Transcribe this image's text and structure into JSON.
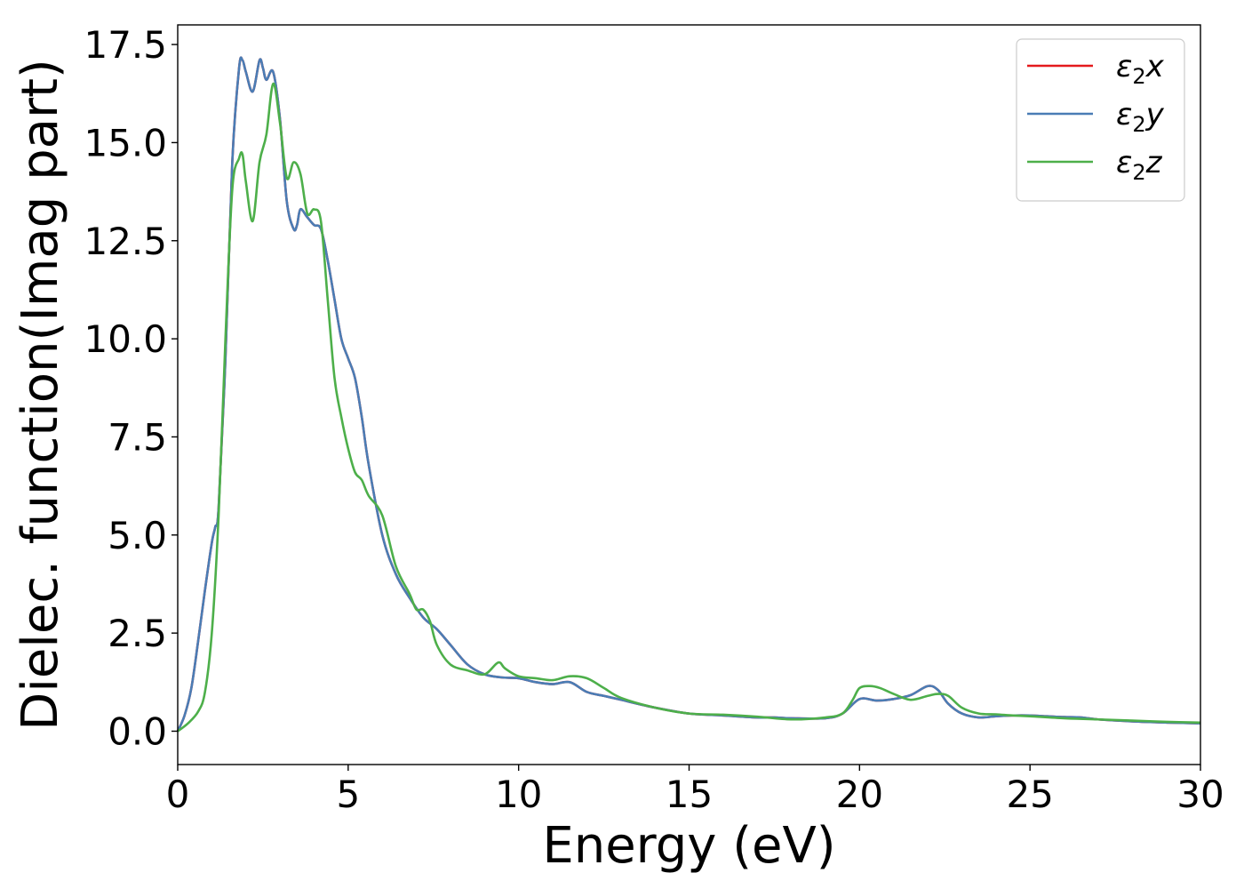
{
  "chart_data": {
    "type": "line",
    "title": "",
    "xlabel": "Energy (eV)",
    "ylabel": "Dielec. function(Imag part)",
    "xlim": [
      0,
      30
    ],
    "ylim": [
      -0.85,
      18.0
    ],
    "xticks": [
      0,
      5,
      10,
      15,
      20,
      25,
      30
    ],
    "xtick_labels": [
      "0",
      "5",
      "10",
      "15",
      "20",
      "25",
      "30"
    ],
    "yticks": [
      0.0,
      2.5,
      5.0,
      7.5,
      10.0,
      12.5,
      15.0,
      17.5
    ],
    "ytick_labels": [
      "0.0",
      "2.5",
      "5.0",
      "7.5",
      "10.0",
      "12.5",
      "15.0",
      "17.5"
    ],
    "grid": false,
    "legend_position": "top-right",
    "series": [
      {
        "name": "ε2x",
        "legend_base": "ε",
        "legend_sub": "2",
        "legend_var": "x",
        "color": "#e41a1c",
        "x": [
          0,
          0.2,
          0.4,
          0.6,
          0.8,
          1.0,
          1.1,
          1.2,
          1.4,
          1.6,
          1.8,
          1.9,
          2.0,
          2.2,
          2.4,
          2.5,
          2.6,
          2.8,
          3.0,
          3.2,
          3.4,
          3.5,
          3.6,
          3.8,
          4.0,
          4.2,
          4.4,
          4.6,
          4.8,
          5.0,
          5.2,
          5.4,
          5.6,
          6.0,
          6.4,
          6.8,
          7.2,
          7.6,
          8.0,
          8.5,
          9.0,
          9.5,
          10.0,
          10.5,
          11.0,
          11.5,
          12.0,
          12.5,
          13.0,
          14.0,
          15.0,
          16.0,
          17.0,
          17.5,
          18.0,
          19.0,
          19.5,
          20.0,
          20.5,
          21.0,
          21.5,
          22.0,
          22.3,
          22.6,
          23.0,
          23.5,
          24.0,
          24.5,
          25.0,
          25.5,
          26.0,
          26.5,
          27.0,
          28.0,
          29.0,
          30.0
        ],
        "y": [
          0.0,
          0.4,
          1.1,
          2.3,
          3.6,
          4.8,
          5.2,
          5.7,
          9.5,
          14.5,
          16.9,
          17.1,
          16.8,
          16.3,
          17.1,
          16.9,
          16.6,
          16.8,
          15.6,
          13.5,
          12.8,
          12.9,
          13.3,
          13.1,
          12.9,
          12.8,
          12.0,
          11.0,
          10.0,
          9.5,
          9.0,
          8.0,
          6.8,
          5.0,
          4.0,
          3.4,
          2.9,
          2.6,
          2.2,
          1.7,
          1.45,
          1.37,
          1.35,
          1.25,
          1.2,
          1.25,
          1.0,
          0.9,
          0.8,
          0.6,
          0.45,
          0.4,
          0.35,
          0.35,
          0.33,
          0.33,
          0.45,
          0.82,
          0.78,
          0.82,
          0.92,
          1.15,
          1.05,
          0.7,
          0.45,
          0.35,
          0.38,
          0.4,
          0.4,
          0.38,
          0.36,
          0.35,
          0.3,
          0.25,
          0.22,
          0.2
        ]
      },
      {
        "name": "ε2y",
        "legend_base": "ε",
        "legend_sub": "2",
        "legend_var": "y",
        "color": "#4a7db5",
        "x": [
          0,
          0.2,
          0.4,
          0.6,
          0.8,
          1.0,
          1.1,
          1.2,
          1.4,
          1.6,
          1.8,
          1.9,
          2.0,
          2.2,
          2.4,
          2.5,
          2.6,
          2.8,
          3.0,
          3.2,
          3.4,
          3.5,
          3.6,
          3.8,
          4.0,
          4.2,
          4.4,
          4.6,
          4.8,
          5.0,
          5.2,
          5.4,
          5.6,
          6.0,
          6.4,
          6.8,
          7.2,
          7.6,
          8.0,
          8.5,
          9.0,
          9.5,
          10.0,
          10.5,
          11.0,
          11.5,
          12.0,
          12.5,
          13.0,
          14.0,
          15.0,
          16.0,
          17.0,
          17.5,
          18.0,
          19.0,
          19.5,
          20.0,
          20.5,
          21.0,
          21.5,
          22.0,
          22.3,
          22.6,
          23.0,
          23.5,
          24.0,
          24.5,
          25.0,
          25.5,
          26.0,
          26.5,
          27.0,
          28.0,
          29.0,
          30.0
        ],
        "y": [
          0.0,
          0.4,
          1.1,
          2.3,
          3.6,
          4.8,
          5.2,
          5.7,
          9.5,
          14.5,
          16.9,
          17.1,
          16.8,
          16.3,
          17.1,
          16.9,
          16.6,
          16.8,
          15.6,
          13.5,
          12.8,
          12.9,
          13.3,
          13.1,
          12.9,
          12.8,
          12.0,
          11.0,
          10.0,
          9.5,
          9.0,
          8.0,
          6.8,
          5.0,
          4.0,
          3.4,
          2.9,
          2.6,
          2.2,
          1.7,
          1.45,
          1.37,
          1.35,
          1.25,
          1.2,
          1.25,
          1.0,
          0.9,
          0.8,
          0.6,
          0.45,
          0.4,
          0.35,
          0.35,
          0.33,
          0.33,
          0.45,
          0.82,
          0.78,
          0.82,
          0.92,
          1.15,
          1.05,
          0.7,
          0.45,
          0.35,
          0.38,
          0.4,
          0.4,
          0.38,
          0.36,
          0.35,
          0.3,
          0.25,
          0.22,
          0.2
        ]
      },
      {
        "name": "ε2z",
        "legend_base": "ε",
        "legend_sub": "2",
        "legend_var": "z",
        "color": "#4daf4a",
        "x": [
          0,
          0.3,
          0.6,
          0.8,
          1.0,
          1.2,
          1.4,
          1.6,
          1.8,
          1.9,
          2.0,
          2.2,
          2.4,
          2.6,
          2.8,
          3.0,
          3.2,
          3.4,
          3.6,
          3.8,
          4.0,
          4.2,
          4.4,
          4.6,
          4.8,
          5.0,
          5.2,
          5.4,
          5.6,
          6.0,
          6.4,
          6.8,
          7.0,
          7.2,
          7.4,
          7.6,
          8.0,
          8.5,
          9.0,
          9.4,
          9.6,
          10.0,
          10.5,
          11.0,
          11.5,
          12.0,
          12.5,
          13.0,
          14.0,
          15.0,
          16.0,
          17.0,
          18.0,
          19.0,
          19.5,
          19.8,
          20.0,
          20.3,
          20.6,
          21.0,
          21.5,
          22.0,
          22.3,
          22.6,
          23.0,
          23.5,
          24.0,
          24.5,
          25.0,
          26.0,
          27.0,
          28.0,
          29.0,
          30.0
        ],
        "y": [
          0.0,
          0.2,
          0.5,
          1.0,
          2.5,
          5.5,
          10.0,
          13.8,
          14.6,
          14.7,
          14.0,
          13.0,
          14.5,
          15.2,
          16.5,
          15.5,
          14.1,
          14.5,
          14.2,
          13.2,
          13.3,
          13.0,
          11.0,
          9.0,
          8.0,
          7.2,
          6.6,
          6.4,
          6.0,
          5.5,
          4.2,
          3.5,
          3.1,
          3.1,
          2.8,
          2.2,
          1.7,
          1.55,
          1.45,
          1.75,
          1.6,
          1.4,
          1.35,
          1.3,
          1.4,
          1.35,
          1.1,
          0.85,
          0.6,
          0.45,
          0.42,
          0.37,
          0.3,
          0.35,
          0.45,
          0.8,
          1.1,
          1.15,
          1.1,
          0.95,
          0.8,
          0.9,
          0.95,
          0.9,
          0.6,
          0.45,
          0.43,
          0.4,
          0.38,
          0.33,
          0.3,
          0.27,
          0.24,
          0.22
        ]
      }
    ]
  }
}
